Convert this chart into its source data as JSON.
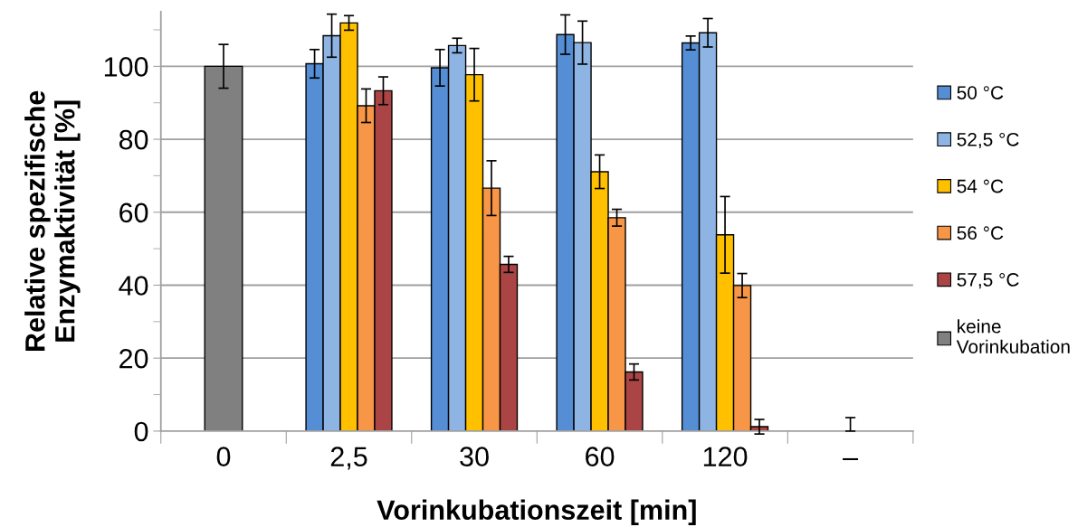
{
  "chart_data": {
    "type": "bar",
    "xlabel": "Vorinkubationszeit [min]",
    "ylabel": "Relative spezifische\nEnzymaktivität [%]",
    "categories": [
      "0",
      "2,5",
      "30",
      "60",
      "120",
      "–"
    ],
    "series": [
      {
        "name": "50 °C",
        "color": "#558ed5",
        "values": [
          null,
          100.7,
          99.6,
          108.7,
          106.4,
          null
        ],
        "errors": [
          null,
          3.9,
          5,
          5.4,
          1.9,
          null
        ]
      },
      {
        "name": "52,5 °C",
        "color": "#8eb4e3",
        "values": [
          null,
          108.4,
          105.7,
          106.5,
          109.2,
          null
        ],
        "errors": [
          null,
          5.9,
          2,
          5.9,
          3.9,
          null
        ]
      },
      {
        "name": "54 °C",
        "color": "#ffc000",
        "values": [
          null,
          111.9,
          97.7,
          71.1,
          53.8,
          null
        ],
        "errors": [
          null,
          2,
          7.2,
          4.6,
          10.5,
          null
        ]
      },
      {
        "name": "56 °C",
        "color": "#f79646",
        "values": [
          null,
          89.2,
          66.6,
          58.5,
          39.9,
          null
        ],
        "errors": [
          null,
          4.6,
          7.5,
          2.3,
          3.3,
          null
        ]
      },
      {
        "name": "57,5 °C",
        "color": "#ab4545",
        "values": [
          null,
          93.3,
          45.7,
          16.2,
          1.2,
          null
        ],
        "errors": [
          null,
          3.8,
          2.2,
          2.2,
          2,
          null
        ]
      },
      {
        "name": "keine\nVorinkubation",
        "color": "#808080",
        "values": [
          100,
          null,
          null,
          null,
          null,
          0
        ],
        "errors": [
          6,
          null,
          null,
          null,
          null,
          [
            0,
            3.7
          ]
        ]
      }
    ],
    "ylim": [
      0,
      115
    ],
    "yticks": [
      0,
      {
        "value": 10,
        "label": null
      },
      20,
      {
        "value": 30,
        "label": null
      },
      40,
      {
        "value": 50,
        "label": null
      },
      60,
      {
        "value": 70,
        "label": null
      },
      80,
      {
        "value": 90,
        "label": null
      },
      100,
      {
        "value": 110,
        "label": null
      }
    ],
    "grid": "y",
    "legend": "right"
  }
}
